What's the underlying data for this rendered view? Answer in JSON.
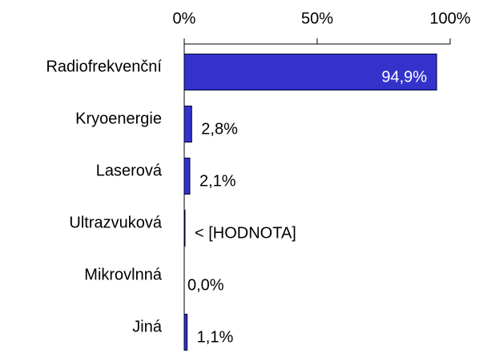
{
  "chart_data": {
    "type": "barh",
    "categories": [
      "Radiofrekvenční",
      "Kryoenergie",
      "Laserová",
      "Ultrazvuková",
      "Mikrovlnná",
      "Jiná"
    ],
    "values": [
      94.9,
      2.8,
      2.1,
      0.3,
      0.0,
      1.1
    ],
    "value_labels": [
      "94,9%",
      "2,8%",
      "2,1%",
      "< [HODNOTA]",
      "0,0%",
      "1,1%"
    ],
    "color": "#3333cc",
    "xlim": [
      0,
      100
    ],
    "xticks": [
      {
        "value": 0,
        "label": "0%"
      },
      {
        "value": 50,
        "label": "50%"
      },
      {
        "value": 100,
        "label": "100%"
      }
    ]
  }
}
